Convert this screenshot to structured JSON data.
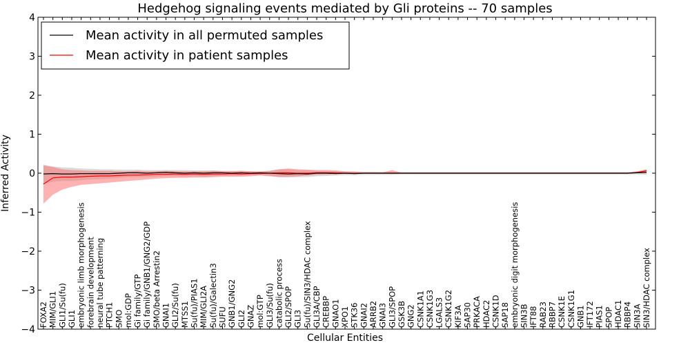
{
  "chart_data": {
    "type": "line",
    "title": "Hedgehog signaling events mediated by Gli proteins -- 70 samples",
    "xlabel": "Cellular Entities",
    "ylabel": "Inferred Activity",
    "ylim": [
      -4,
      4
    ],
    "yticks": [
      -4,
      -3,
      -2,
      -1,
      0,
      1,
      2,
      3,
      4
    ],
    "ytick_labels": [
      "−4",
      "−3",
      "−2",
      "−1",
      "0",
      "1",
      "2",
      "3",
      "4"
    ],
    "legend_position": "top-left",
    "legend": [
      {
        "label": "Mean activity in all permuted samples",
        "color": "#000000"
      },
      {
        "label": "Mean activity in patient samples",
        "color": "#ff0000"
      }
    ],
    "categories": [
      "FOXA2",
      "MIM/GLI1",
      "GLI1/Su(fu)",
      "GLI1",
      "embryonic limb morphogenesis",
      "forebrain development",
      "neural tube patterning",
      "PTCH1",
      "SMO",
      "mol:GDP",
      "Gi family/GTP",
      "Gi family/GNB1/GNG2/GDP",
      "SMO/beta Arrestin2",
      "GNAI1",
      "GLI2/Su(fu)",
      "MTSS1",
      "Su(fu)/PIAS1",
      "MIM/GLI2A",
      "Su(fu)/Galectin3",
      "SUFU",
      "GNB1/GNG2",
      "GLI2",
      "GNAZ",
      "mol:GTP",
      "GLI3/Su(fu)",
      "catabolic process",
      "GLI2/SPOP",
      "GLI3",
      "Su(fu)/SIN3/HDAC complex",
      "GLI3A/CBP",
      "CREBBP",
      "GNAO1",
      "XPO1",
      "STK36",
      "GNAI2",
      "ARRB2",
      "GNAI3",
      "GLI3/SPOP",
      "GSK3B",
      "GNG2",
      "CSNK1A1",
      "CSNK1G3",
      "LGALS3",
      "CSNK1G2",
      "KIF3A",
      "SAP30",
      "PRKACA",
      "HDAC2",
      "CSNK1D",
      "SAP18",
      "embryonic digit morphogenesis",
      "SIN3B",
      "IFT88",
      "RAB23",
      "RBBP7",
      "CSNK1E",
      "CSNK1G1",
      "GNB1",
      "IFT172",
      "PIAS1",
      "SPOP",
      "HDAC1",
      "RBBP4",
      "SIN3A",
      "SIN3/HDAC complex"
    ],
    "series": [
      {
        "name": "Mean activity in all permuted samples",
        "color": "#000000",
        "values": [
          -0.02,
          -0.01,
          -0.02,
          -0.02,
          -0.01,
          -0.01,
          -0.01,
          -0.01,
          0.0,
          0.01,
          0.01,
          0.0,
          0.01,
          0.02,
          0.01,
          0.0,
          0.01,
          0.0,
          0.01,
          0.01,
          0.0,
          0.01,
          0.0,
          0.01,
          0.0,
          -0.01,
          -0.02,
          -0.01,
          -0.02,
          0.0,
          0.0,
          -0.01,
          0.0,
          -0.01,
          0.0,
          0.0,
          0.0,
          0.0,
          0.0,
          0.0,
          0.0,
          0.0,
          0.0,
          0.0,
          0.0,
          0.0,
          0.0,
          0.0,
          0.0,
          0.0,
          0.0,
          0.0,
          0.0,
          0.0,
          0.0,
          0.0,
          0.0,
          0.0,
          0.0,
          0.0,
          0.0,
          0.0,
          0.0,
          0.01,
          0.02
        ],
        "lower": [
          -0.28,
          -0.22,
          -0.2,
          -0.2,
          -0.18,
          -0.16,
          -0.15,
          -0.14,
          -0.12,
          -0.1,
          -0.1,
          -0.1,
          -0.09,
          -0.08,
          -0.08,
          -0.09,
          -0.08,
          -0.09,
          -0.08,
          -0.07,
          -0.06,
          -0.06,
          -0.05,
          -0.04,
          -0.06,
          -0.1,
          -0.11,
          -0.1,
          -0.1,
          -0.08,
          -0.07,
          -0.06,
          -0.05,
          -0.05,
          -0.04,
          -0.04,
          -0.04,
          -0.04,
          -0.03,
          -0.03,
          -0.03,
          -0.03,
          -0.03,
          -0.03,
          -0.03,
          -0.03,
          -0.03,
          -0.03,
          -0.03,
          -0.03,
          -0.03,
          -0.03,
          -0.03,
          -0.03,
          -0.03,
          -0.03,
          -0.03,
          -0.03,
          -0.03,
          -0.03,
          -0.03,
          -0.03,
          -0.03,
          -0.03,
          -0.04
        ],
        "upper": [
          0.22,
          0.17,
          0.15,
          0.14,
          0.12,
          0.11,
          0.1,
          0.1,
          0.09,
          0.09,
          0.09,
          0.08,
          0.08,
          0.08,
          0.08,
          0.08,
          0.07,
          0.07,
          0.07,
          0.06,
          0.06,
          0.06,
          0.05,
          0.05,
          0.06,
          0.1,
          0.1,
          0.08,
          0.08,
          0.06,
          0.06,
          0.05,
          0.04,
          0.04,
          0.04,
          0.04,
          0.03,
          0.03,
          0.03,
          0.03,
          0.03,
          0.03,
          0.03,
          0.03,
          0.03,
          0.03,
          0.03,
          0.03,
          0.03,
          0.03,
          0.03,
          0.03,
          0.03,
          0.03,
          0.03,
          0.03,
          0.03,
          0.03,
          0.03,
          0.03,
          0.03,
          0.03,
          0.03,
          0.05,
          0.1
        ]
      },
      {
        "name": "Mean activity in patient samples",
        "color": "#ff0000",
        "values": [
          -0.28,
          -0.12,
          -0.1,
          -0.1,
          -0.09,
          -0.08,
          -0.07,
          -0.07,
          -0.06,
          -0.05,
          -0.05,
          -0.04,
          -0.03,
          -0.03,
          -0.02,
          -0.03,
          -0.02,
          -0.03,
          -0.02,
          -0.02,
          -0.01,
          -0.02,
          -0.01,
          -0.01,
          0.0,
          0.01,
          0.01,
          0.0,
          0.0,
          0.01,
          0.01,
          0.01,
          0.0,
          0.0,
          0.0,
          0.0,
          0.0,
          0.0,
          0.0,
          0.0,
          0.0,
          0.0,
          0.0,
          0.0,
          0.0,
          0.0,
          0.0,
          0.0,
          0.0,
          0.0,
          0.0,
          0.0,
          0.0,
          0.0,
          0.0,
          0.0,
          0.0,
          0.0,
          0.0,
          0.0,
          0.0,
          0.0,
          0.0,
          0.02,
          0.06
        ],
        "lower": [
          -0.78,
          -0.55,
          -0.42,
          -0.35,
          -0.3,
          -0.28,
          -0.26,
          -0.24,
          -0.22,
          -0.2,
          -0.18,
          -0.16,
          -0.14,
          -0.13,
          -0.12,
          -0.12,
          -0.11,
          -0.11,
          -0.1,
          -0.09,
          -0.09,
          -0.09,
          -0.08,
          -0.06,
          -0.08,
          -0.1,
          -0.09,
          -0.08,
          -0.06,
          -0.04,
          -0.03,
          -0.02,
          -0.02,
          -0.02,
          -0.01,
          -0.01,
          -0.01,
          -0.02,
          -0.01,
          -0.01,
          -0.01,
          -0.01,
          -0.01,
          -0.01,
          -0.01,
          -0.01,
          -0.01,
          -0.01,
          -0.01,
          -0.01,
          -0.01,
          -0.01,
          -0.01,
          -0.01,
          -0.01,
          -0.01,
          -0.01,
          -0.01,
          -0.01,
          -0.01,
          -0.01,
          -0.01,
          -0.01,
          0.0,
          0.01
        ],
        "upper": [
          0.2,
          0.16,
          0.1,
          0.08,
          0.07,
          0.06,
          0.06,
          0.06,
          0.05,
          0.05,
          0.06,
          0.05,
          0.05,
          0.06,
          0.05,
          0.05,
          0.05,
          0.05,
          0.06,
          0.05,
          0.05,
          0.06,
          0.05,
          0.04,
          0.06,
          0.1,
          0.12,
          0.1,
          0.09,
          0.08,
          0.08,
          0.07,
          0.05,
          0.04,
          0.02,
          0.02,
          0.02,
          0.08,
          0.01,
          0.01,
          0.01,
          0.01,
          0.01,
          0.01,
          0.01,
          0.01,
          0.01,
          0.01,
          0.01,
          0.01,
          0.01,
          0.01,
          0.01,
          0.01,
          0.01,
          0.01,
          0.01,
          0.01,
          0.01,
          0.01,
          0.01,
          0.01,
          0.01,
          0.04,
          0.1
        ]
      }
    ]
  }
}
